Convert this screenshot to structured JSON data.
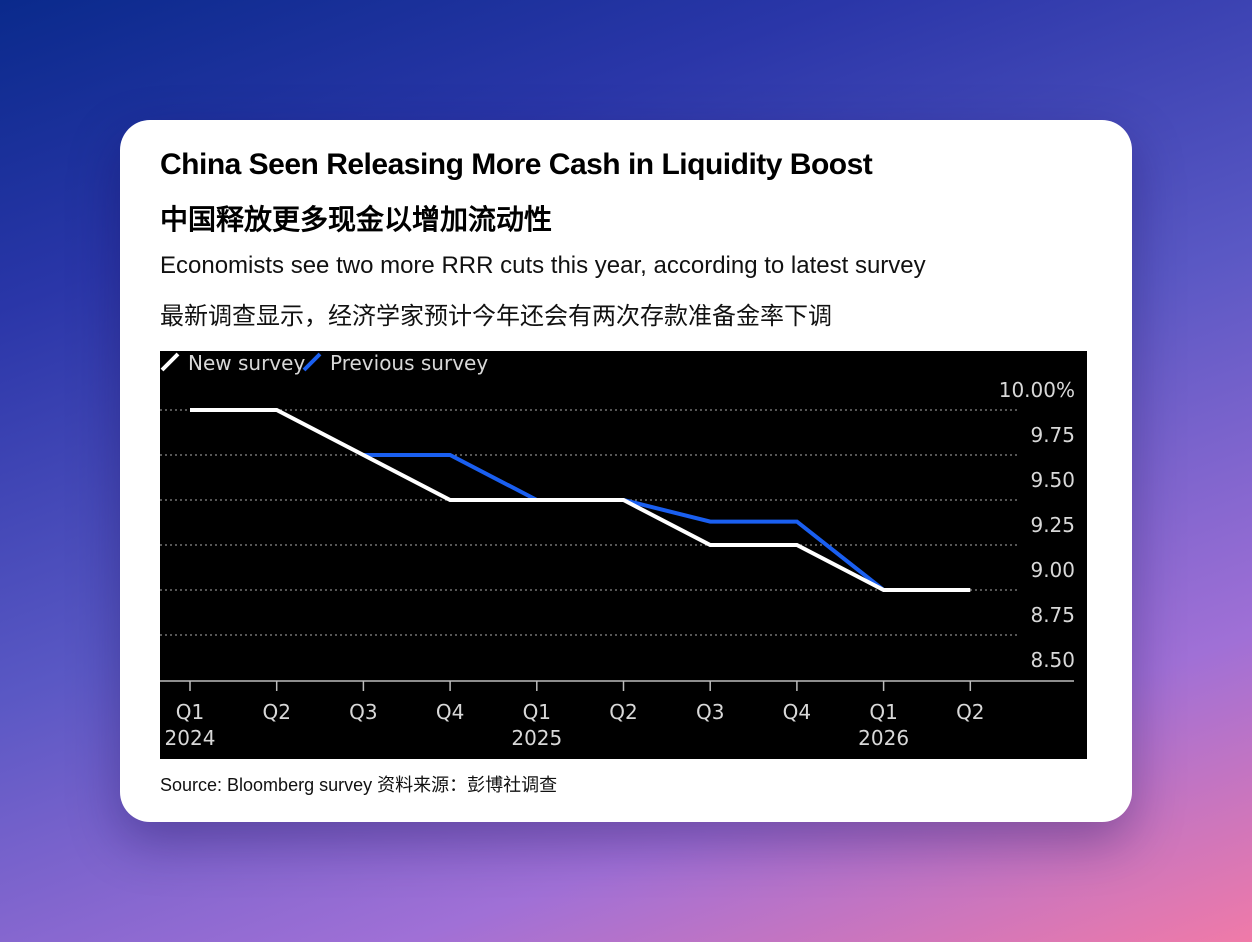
{
  "card": {
    "title_en": "China Seen Releasing More Cash in Liquidity Boost",
    "title_zh": "中国释放更多现金以增加流动性",
    "subtitle_en": "Economists see two more RRR cuts this year, according to latest survey",
    "subtitle_zh": "最新调查显示，经济学家预计今年还会有两次存款准备金率下调",
    "source": "Source: Bloomberg survey 资料来源：彭博社调查"
  },
  "colors": {
    "background_top": "#0a2a8c",
    "background_bottom": "#f07aa8",
    "chart_background": "#000000",
    "new_survey": "#ffffff",
    "previous_survey": "#1a5ff0",
    "grid": "#8a8a8a",
    "axis_text": "#d8d8d8"
  },
  "chart_data": {
    "type": "line",
    "title": "China Seen Releasing More Cash in Liquidity Boost",
    "xlabel": "",
    "ylabel": "",
    "x": [
      "Q1 2024",
      "Q2 2024",
      "Q3 2024",
      "Q4 2024",
      "Q1 2025",
      "Q2 2025",
      "Q3 2025",
      "Q4 2025",
      "Q1 2026",
      "Q2 2026"
    ],
    "x_tick_labels": [
      {
        "quarter": "Q1",
        "year": "2024"
      },
      {
        "quarter": "Q2",
        "year": ""
      },
      {
        "quarter": "Q3",
        "year": ""
      },
      {
        "quarter": "Q4",
        "year": ""
      },
      {
        "quarter": "Q1",
        "year": "2025"
      },
      {
        "quarter": "Q2",
        "year": ""
      },
      {
        "quarter": "Q3",
        "year": ""
      },
      {
        "quarter": "Q4",
        "year": ""
      },
      {
        "quarter": "Q1",
        "year": "2026"
      },
      {
        "quarter": "Q2",
        "year": ""
      }
    ],
    "y_ticks": [
      10.0,
      9.75,
      9.5,
      9.25,
      9.0,
      8.75,
      8.5
    ],
    "y_tick_labels": [
      "10.00%",
      "9.75",
      "9.50",
      "9.25",
      "9.00",
      "8.75",
      "8.50"
    ],
    "ylim": [
      8.4,
      10.05
    ],
    "grid": true,
    "legend_position": "top-left",
    "series": [
      {
        "name": "New survey",
        "color": "#ffffff",
        "values": [
          10.0,
          10.0,
          9.75,
          9.5,
          9.5,
          9.5,
          9.25,
          9.25,
          9.0,
          9.0
        ]
      },
      {
        "name": "Previous survey",
        "color": "#1a5ff0",
        "values": [
          null,
          null,
          9.75,
          9.75,
          9.5,
          9.5,
          9.38,
          9.38,
          9.0,
          null
        ]
      }
    ]
  }
}
